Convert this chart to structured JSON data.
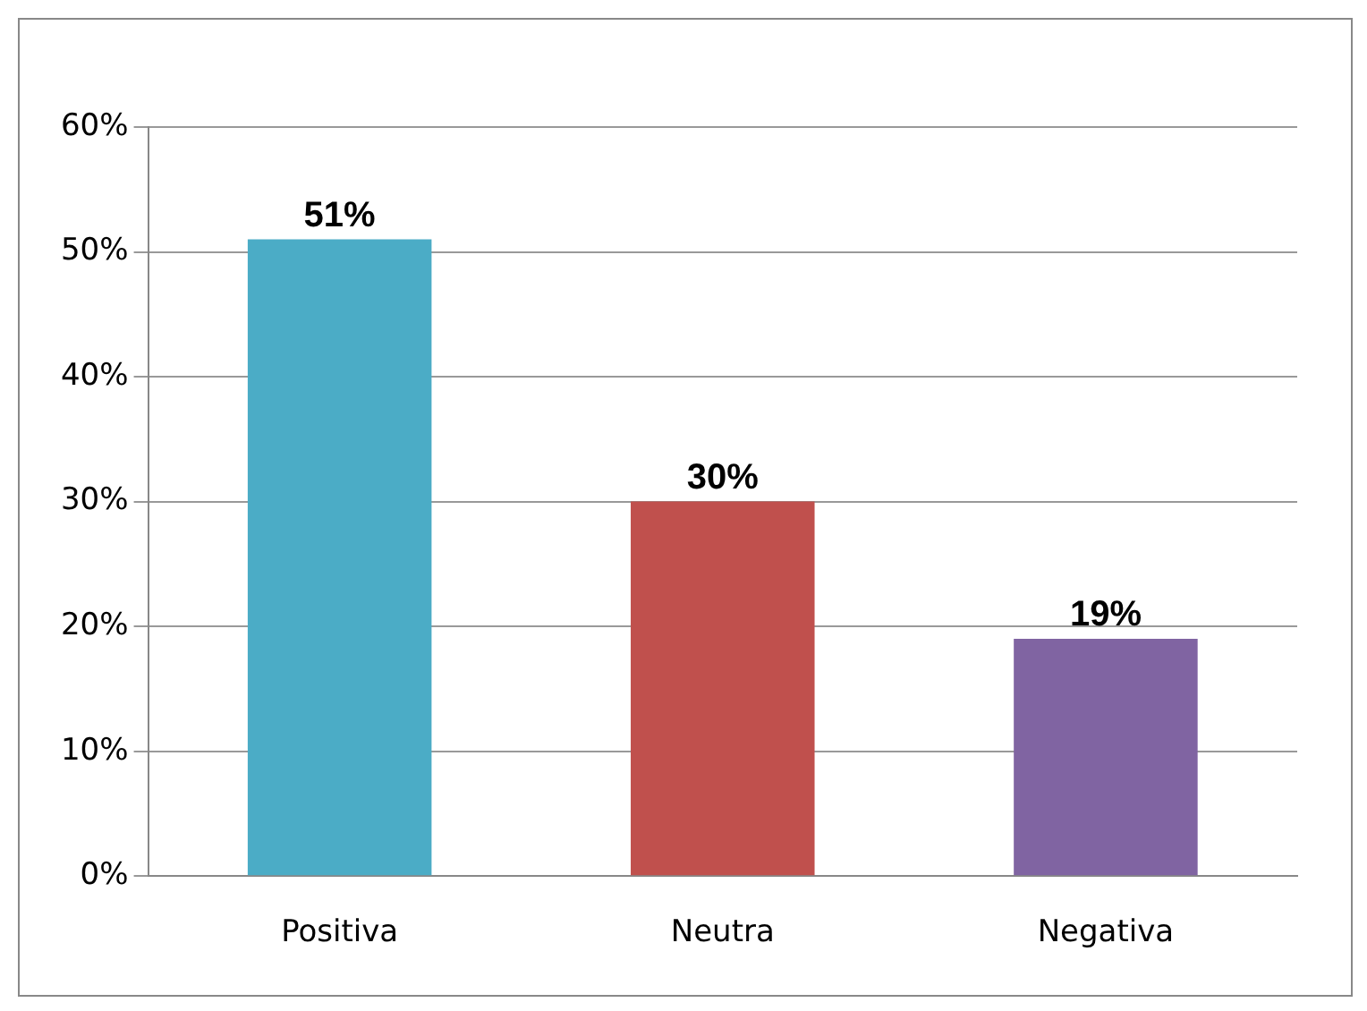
{
  "chart_data": {
    "type": "bar",
    "categories": [
      "Positiva",
      "Neutra",
      "Negativa"
    ],
    "values": [
      51,
      30,
      19
    ],
    "colors": [
      "#4bacc6",
      "#c0504d",
      "#8064a2"
    ],
    "value_labels": [
      "51%",
      "30%",
      "19%"
    ],
    "ylim": [
      0,
      60
    ],
    "yticks": [
      {
        "value": 0,
        "label": "0%"
      },
      {
        "value": 10,
        "label": "10%"
      },
      {
        "value": 20,
        "label": "20%"
      },
      {
        "value": 30,
        "label": "30%"
      },
      {
        "value": 40,
        "label": "40%"
      },
      {
        "value": 50,
        "label": "50%"
      },
      {
        "value": 60,
        "label": "60%"
      }
    ],
    "grid": "y"
  }
}
